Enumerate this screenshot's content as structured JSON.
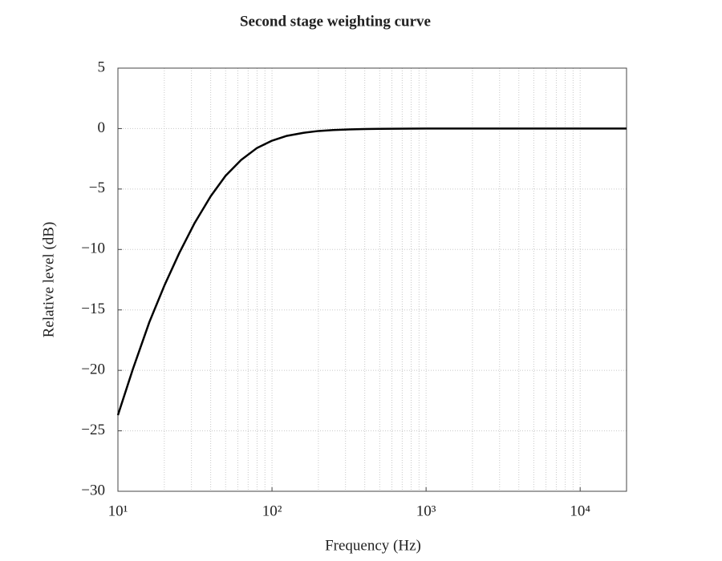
{
  "chart_data": {
    "type": "line",
    "title": "Second stage weighting curve",
    "xlabel": "Frequency (Hz)",
    "ylabel": "Relative level (dB)",
    "x": [
      10,
      12.5,
      16,
      20,
      25,
      31.5,
      40,
      50,
      63,
      80,
      100,
      125,
      160,
      200,
      250,
      315,
      400,
      500,
      1000,
      2000,
      5000,
      10000,
      20000
    ],
    "series": [
      {
        "color": "#000000",
        "values": [
          -23.7,
          -19.9,
          -16,
          -13,
          -10.3,
          -7.8,
          -5.6,
          -3.9,
          -2.6,
          -1.6,
          -1.0,
          -0.6,
          -0.35,
          -0.2,
          -0.12,
          -0.07,
          -0.04,
          -0.02,
          0,
          0,
          0,
          0,
          0
        ]
      }
    ],
    "xlim": [
      10,
      20000
    ],
    "xscale": "log",
    "xticks": [
      {
        "value": 10,
        "label": "10¹"
      },
      {
        "value": 100,
        "label": "10²"
      },
      {
        "value": 1000,
        "label": "10³"
      },
      {
        "value": 10000,
        "label": "10⁴"
      }
    ],
    "ylim": [
      -30,
      5
    ],
    "yticks": [
      {
        "value": -30,
        "label": "−30"
      },
      {
        "value": -25,
        "label": "−25"
      },
      {
        "value": -20,
        "label": "−20"
      },
      {
        "value": -15,
        "label": "−15"
      },
      {
        "value": -10,
        "label": "−10"
      },
      {
        "value": -5,
        "label": "−5"
      },
      0,
      5
    ],
    "grid": true,
    "minor_grid": true
  }
}
